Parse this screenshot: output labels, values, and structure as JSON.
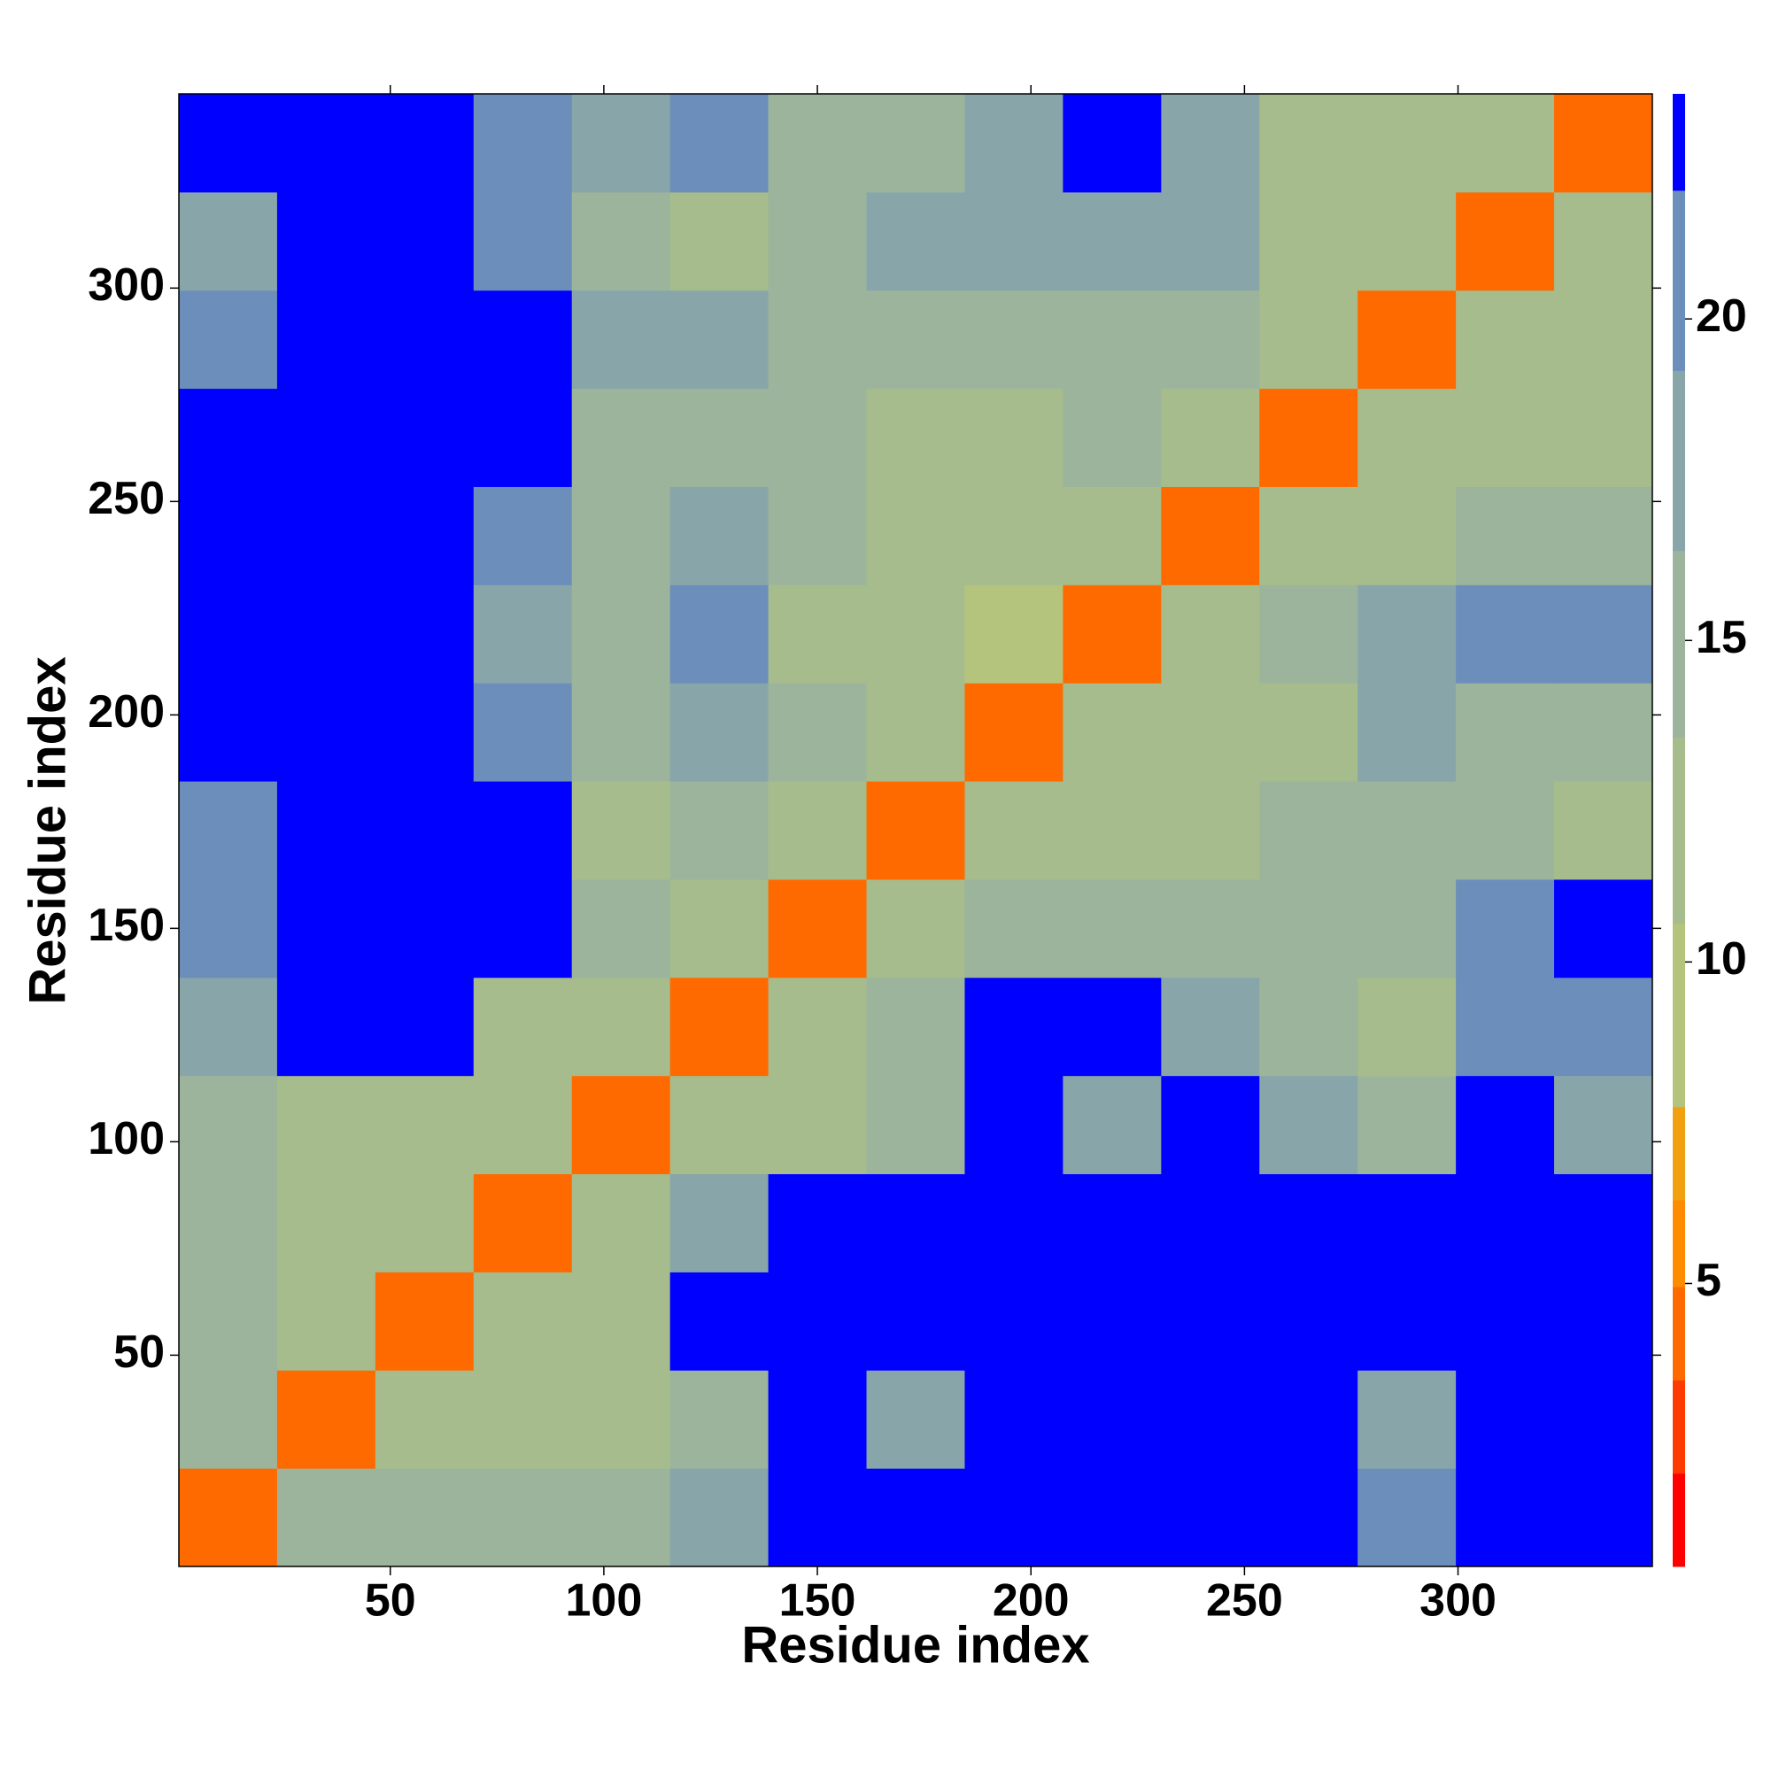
{
  "chart_data": {
    "type": "heatmap",
    "xlabel": "Residue index",
    "ylabel": "Residue index",
    "x": [
      12,
      35,
      58,
      81,
      104,
      127,
      150,
      173,
      196,
      219,
      242,
      265,
      288,
      311,
      334
    ],
    "y": [
      12,
      35,
      58,
      81,
      104,
      127,
      150,
      173,
      196,
      219,
      242,
      265,
      288,
      311,
      334
    ],
    "values": [
      [
        4,
        16,
        16,
        14,
        14,
        18,
        23,
        23,
        23,
        23,
        23,
        23,
        20,
        23,
        23
      ],
      [
        14,
        4,
        12,
        12,
        13,
        16,
        23,
        19,
        23,
        23,
        23,
        23,
        19,
        23,
        23
      ],
      [
        14,
        12,
        4,
        11,
        13,
        23,
        23,
        23,
        23,
        23,
        23,
        23,
        23,
        23,
        23
      ],
      [
        14,
        11,
        11,
        4,
        12,
        18,
        23,
        23,
        23,
        23,
        23,
        23,
        23,
        23,
        23
      ],
      [
        15,
        12,
        13,
        12,
        4,
        12,
        13,
        14,
        23,
        17,
        22,
        19,
        16,
        22,
        19
      ],
      [
        18,
        23,
        23,
        12,
        11,
        4,
        11,
        14,
        23,
        23,
        19,
        16,
        13,
        20,
        21
      ],
      [
        20,
        23,
        23,
        23,
        14,
        12,
        4,
        12,
        14,
        14,
        14,
        16,
        15,
        20,
        22
      ],
      [
        20,
        23,
        22,
        23,
        13,
        16,
        12,
        4,
        12,
        12,
        13,
        14,
        15,
        16,
        13
      ],
      [
        23,
        23,
        23,
        20,
        15,
        18,
        14,
        12,
        4,
        11,
        12,
        13,
        17,
        15,
        14
      ],
      [
        23,
        23,
        23,
        18,
        16,
        20,
        13,
        13,
        10,
        4,
        11,
        14,
        18,
        20,
        21
      ],
      [
        23,
        23,
        23,
        20,
        16,
        17,
        14,
        13,
        11,
        12,
        4,
        11,
        13,
        15,
        14
      ],
      [
        23,
        23,
        23,
        23,
        16,
        14,
        14,
        13,
        12,
        15,
        12,
        4,
        11,
        13,
        12
      ],
      [
        20,
        23,
        23,
        23,
        18,
        19,
        16,
        14,
        16,
        16,
        14,
        11,
        4,
        12,
        13
      ],
      [
        19,
        23,
        23,
        20,
        16,
        13,
        14,
        18,
        19,
        17,
        18,
        13,
        12,
        4,
        12
      ],
      [
        23,
        22,
        23,
        20,
        17,
        20,
        16,
        15,
        18,
        22,
        17,
        13,
        12,
        13,
        4
      ]
    ],
    "xlim": [
      0.5,
      345.5
    ],
    "ylim": [
      0.5,
      345.5
    ],
    "xticks": [
      50,
      100,
      150,
      200,
      250,
      300
    ],
    "yticks": [
      50,
      100,
      150,
      200,
      250,
      300
    ],
    "colorbar": {
      "ylim": [
        0.6,
        23.5
      ],
      "yticks": [
        5,
        10,
        15,
        20
      ],
      "bounds": [
        0.6,
        2.05,
        3.5,
        4.95,
        6.3,
        7.75,
        10.6,
        13.5,
        16.4,
        19.2,
        22.0,
        23.5
      ],
      "colors": [
        "#ff0000",
        "#ff3a00",
        "#ff6a00",
        "#ff8c00",
        "#f0a010",
        "#b4c47c",
        "#a6bc8c",
        "#9cb49c",
        "#88a6aa",
        "#6c8eba",
        "#0000ff"
      ]
    }
  }
}
